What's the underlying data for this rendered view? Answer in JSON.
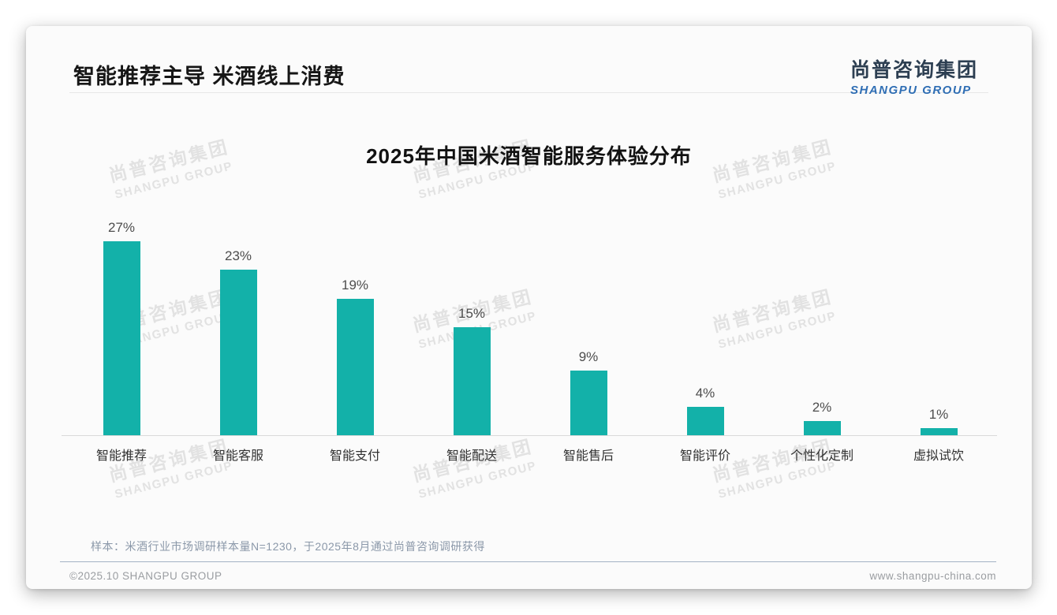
{
  "page": {
    "title": "智能推荐主导 米酒线上消费",
    "logo": {
      "cn": "尚普咨询集团",
      "en": "SHANGPU GROUP"
    },
    "watermark": {
      "cn": "尚普咨询集团",
      "en": "SHANGPU GROUP"
    },
    "note": "样本：米酒行业市场调研样本量N=1230，于2025年8月通过尚普咨询调研获得",
    "footer": {
      "copyright": "©2025.10 SHANGPU GROUP",
      "website": "www.shangpu-china.com"
    }
  },
  "chart_data": {
    "type": "bar",
    "title": "2025年中国米酒智能服务体验分布",
    "categories": [
      "智能推荐",
      "智能客服",
      "智能支付",
      "智能配送",
      "智能售后",
      "智能评价",
      "个性化定制",
      "虚拟试饮"
    ],
    "values": [
      27,
      23,
      19,
      15,
      9,
      4,
      2,
      1
    ],
    "value_labels": [
      "27%",
      "23%",
      "19%",
      "15%",
      "9%",
      "4%",
      "2%",
      "1%"
    ],
    "bar_color": "#13b1a9",
    "xlabel": "",
    "ylabel": "",
    "ylim": [
      0,
      30
    ],
    "grid": false,
    "legend": false
  }
}
